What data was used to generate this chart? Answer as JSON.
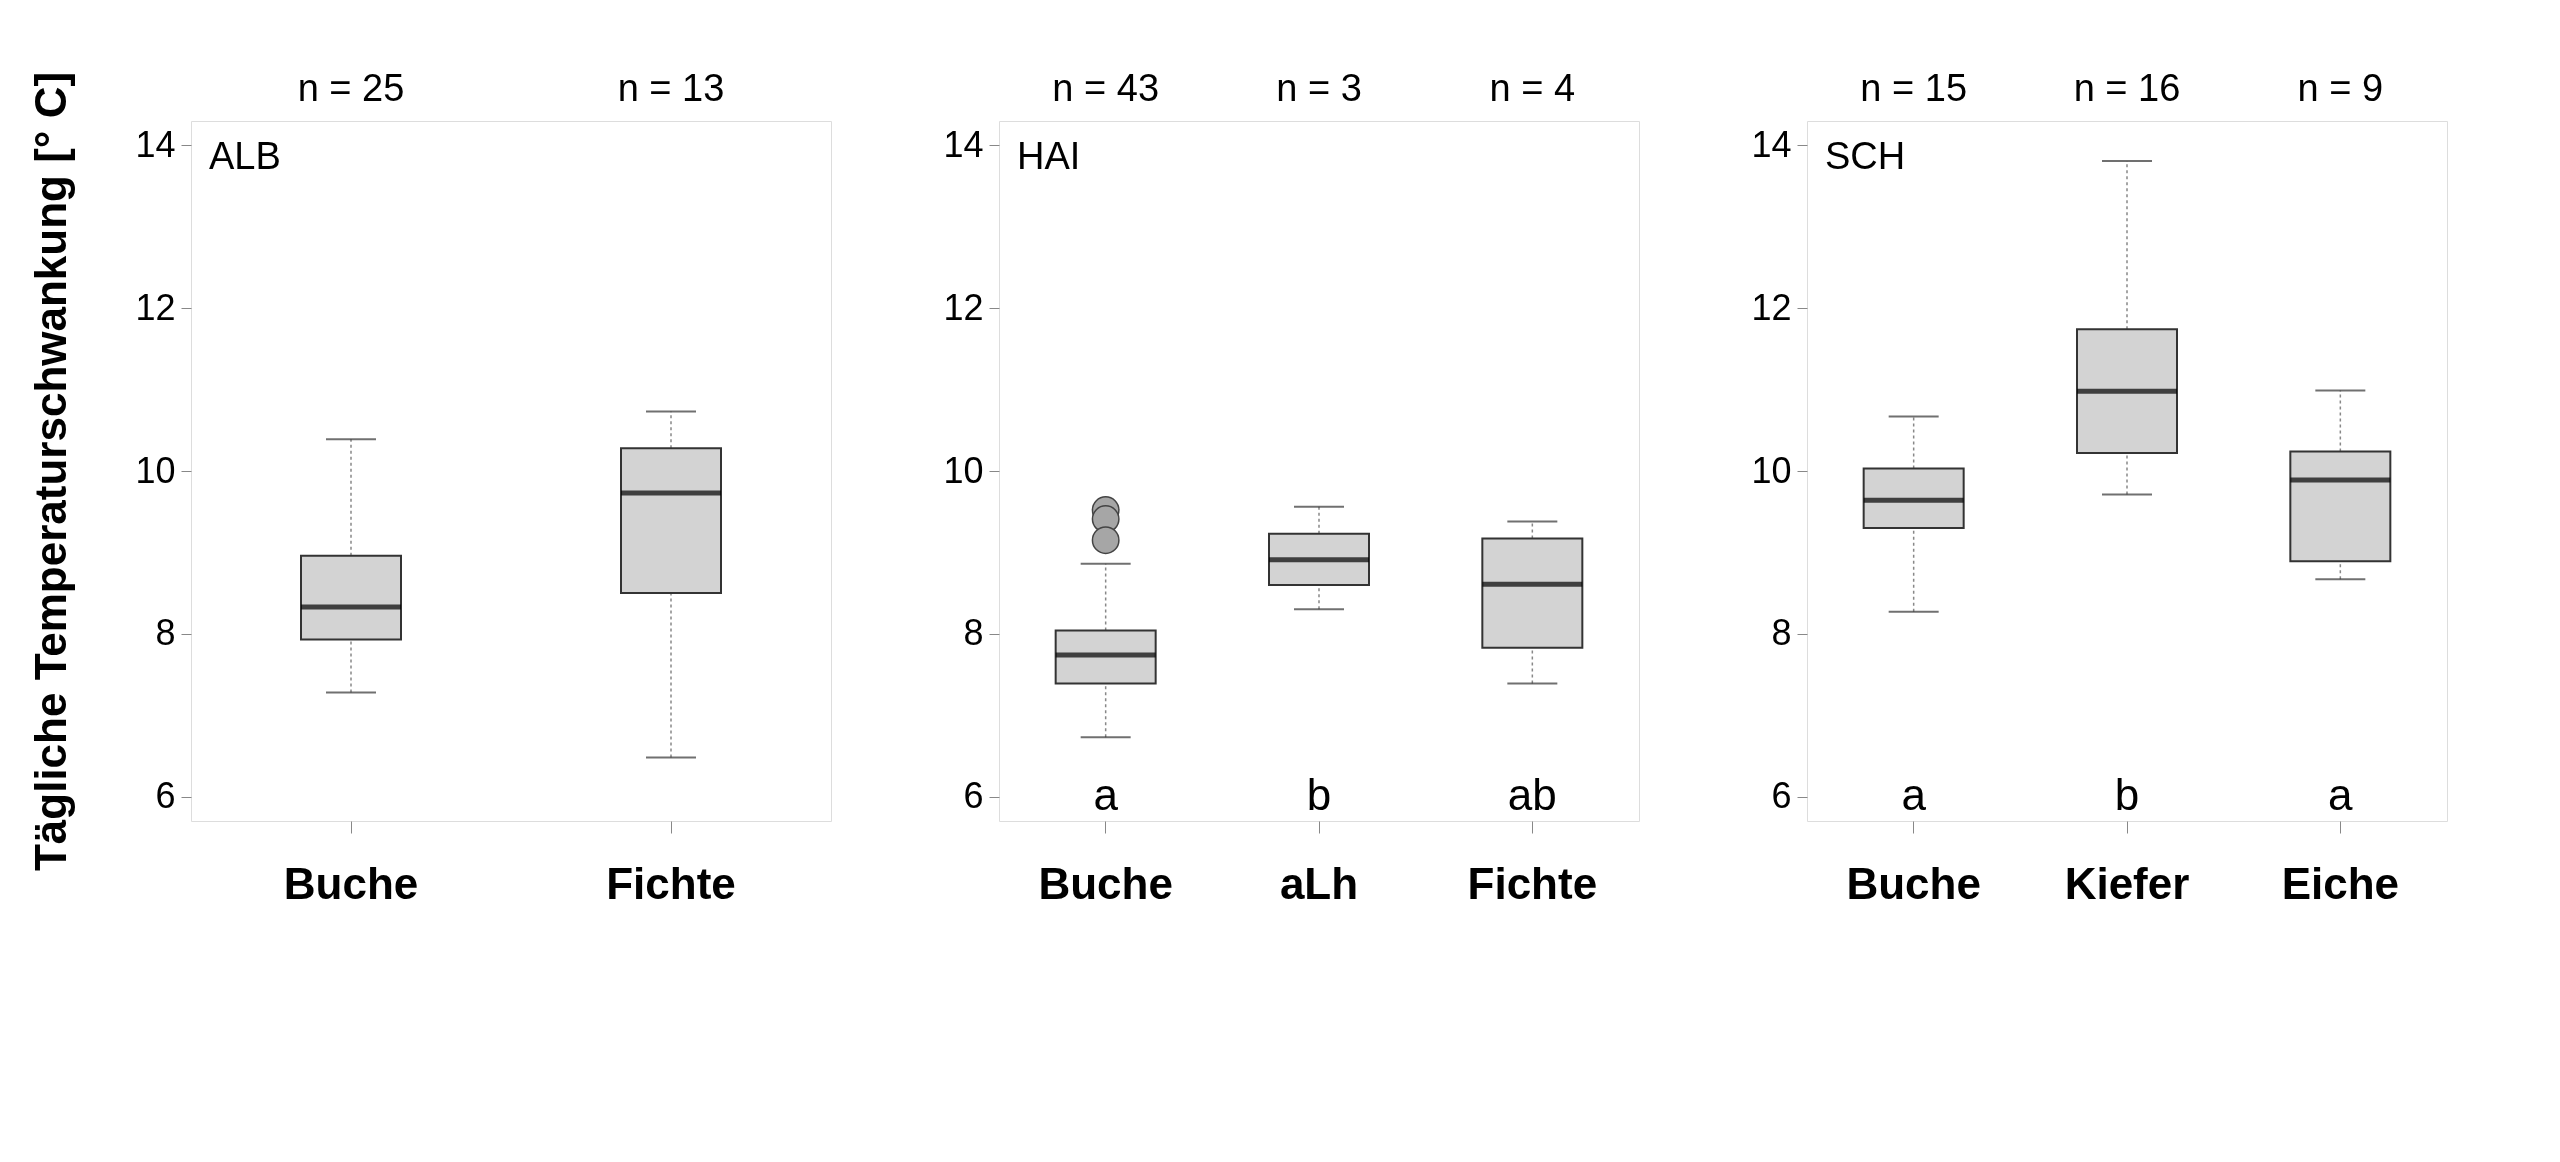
{
  "chart_data": [
    {
      "type": "box",
      "title": "ALB",
      "ylabel": "Tägliche Temperaturschwankung [° C]",
      "categories": [
        "Buche",
        "Fichte"
      ],
      "ylim": [
        5.7,
        14.3
      ],
      "yticks": [
        6,
        8,
        10,
        12,
        14
      ],
      "series": [
        {
          "color": "#d3d3d3",
          "boxes": [
            {
              "low": 7.28,
              "q1": 7.93,
              "median": 8.33,
              "q3": 8.96,
              "high": 10.39
            },
            {
              "low": 6.48,
              "q1": 8.5,
              "median": 9.73,
              "q3": 10.28,
              "high": 10.73
            }
          ]
        }
      ],
      "annotations": [
        "n = 25",
        "n = 13"
      ]
    },
    {
      "type": "box",
      "title": "HAI",
      "categories": [
        "Buche",
        "aLh",
        "Fichte"
      ],
      "ylim": [
        5.7,
        14.3
      ],
      "yticks": [
        6,
        8,
        10,
        12,
        14
      ],
      "series": [
        {
          "color": "#d3d3d3",
          "boxes": [
            {
              "low": 6.73,
              "q1": 7.39,
              "median": 7.74,
              "q3": 8.04,
              "high": 8.86,
              "outliers": [
                9.52,
                9.41,
                9.15
              ]
            },
            {
              "low": 8.3,
              "q1": 8.6,
              "median": 8.91,
              "q3": 9.23,
              "high": 9.56
            },
            {
              "low": 7.39,
              "q1": 7.83,
              "median": 8.61,
              "q3": 9.17,
              "high": 9.38
            }
          ]
        }
      ],
      "annotations": [
        "n = 43",
        "n = 3",
        "n = 4",
        "a",
        "b",
        "ab"
      ]
    },
    {
      "type": "box",
      "title": "SCH",
      "categories": [
        "Buche",
        "Kiefer",
        "Eiche"
      ],
      "ylim": [
        5.7,
        14.3
      ],
      "yticks": [
        6,
        8,
        10,
        12,
        14
      ],
      "series": [
        {
          "color": "#d3d3d3",
          "boxes": [
            {
              "low": 8.27,
              "q1": 9.3,
              "median": 9.64,
              "q3": 10.03,
              "high": 10.67
            },
            {
              "low": 9.71,
              "q1": 10.22,
              "median": 10.98,
              "q3": 11.74,
              "high": 13.81
            },
            {
              "low": 8.67,
              "q1": 8.89,
              "median": 9.89,
              "q3": 10.24,
              "high": 10.99
            }
          ]
        }
      ],
      "annotations": [
        "n = 15",
        "n = 16",
        "n = 9",
        "a",
        "b",
        "a"
      ]
    }
  ]
}
